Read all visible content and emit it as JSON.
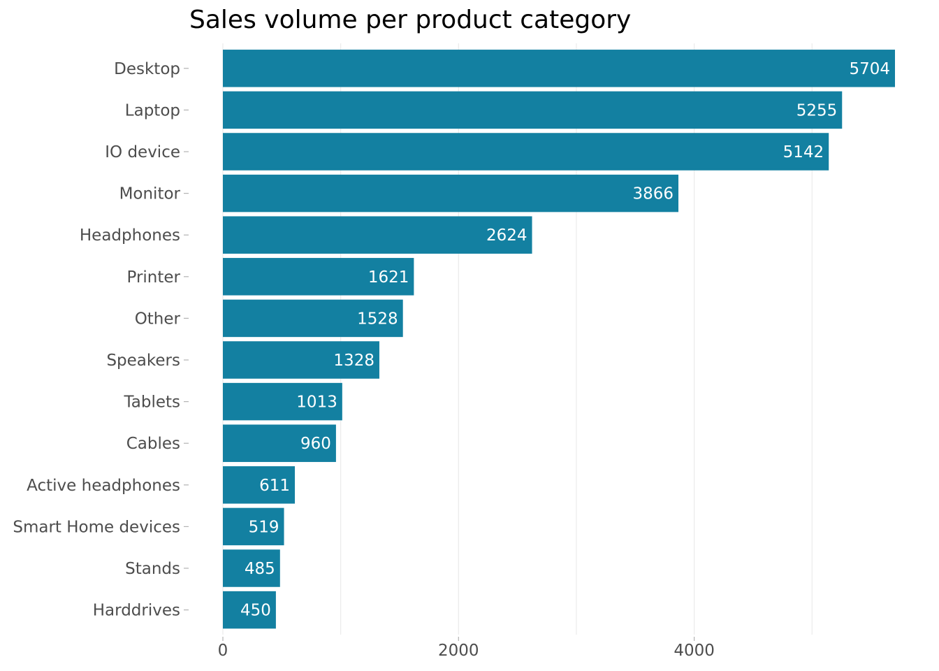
{
  "chart_data": {
    "type": "bar",
    "orientation": "horizontal",
    "title": "Sales volume per product category",
    "xlabel": "",
    "ylabel": "",
    "categories": [
      "Desktop",
      "Laptop",
      "IO device",
      "Monitor",
      "Headphones",
      "Printer",
      "Other",
      "Speakers",
      "Tablets",
      "Cables",
      "Active headphones",
      "Smart Home devices",
      "Stands",
      "Harddrives"
    ],
    "values": [
      5704,
      5255,
      5142,
      3866,
      2624,
      1621,
      1528,
      1328,
      1013,
      960,
      611,
      519,
      485,
      450
    ],
    "xlim": [
      0,
      5704
    ],
    "xticks": [
      0,
      2000,
      4000
    ],
    "grid": "vertical",
    "bar_color": "#1380a1",
    "label_color": "#ffffff"
  }
}
